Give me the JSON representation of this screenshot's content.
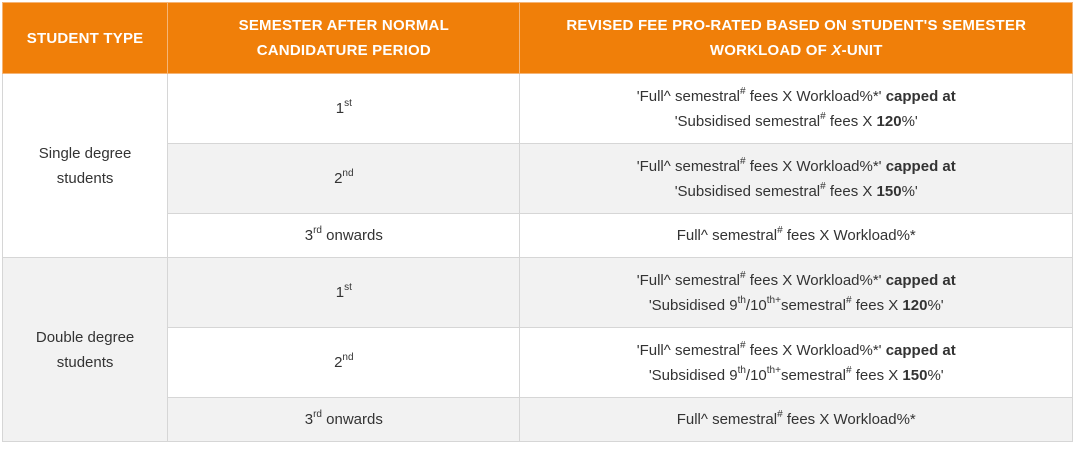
{
  "colors": {
    "header_bg": "#f07f09",
    "header_text": "#ffffff",
    "alt_row": "#f2f2f2"
  },
  "header": {
    "col1": "STUDENT TYPE",
    "col2_line1": "SEMESTER AFTER NORMAL",
    "col2_line2": "CANDIDATURE PERIOD",
    "col3_line1": "REVISED FEE PRO-RATED BASED ON STUDENT'S SEMESTER",
    "col3_line2_pre": "WORKLOAD OF ",
    "col3_line2_italic": "X",
    "col3_line2_post": "-UNIT"
  },
  "groups": [
    {
      "type_line1": "Single degree",
      "type_line2": "students",
      "rows": [
        {
          "sem_num": "1",
          "sem_sup": "st",
          "l1_a": "'Full^ semestral",
          "l1_sup": "#",
          "l1_b": " fees X Workload%*'",
          "l1_bold": " capped at",
          "l2_a": "'Subsidised semestral",
          "l2_sup": "#",
          "l2_b": " fees X ",
          "l2_bold": "120",
          "l2_c": "%'"
        },
        {
          "sem_num": "2",
          "sem_sup": "nd",
          "l1_a": "'Full^ semestral",
          "l1_sup": "#",
          "l1_b": " fees X Workload%*'",
          "l1_bold": " capped at",
          "l2_a": "'Subsidised semestral",
          "l2_sup": "#",
          "l2_b": " fees X ",
          "l2_bold": "150",
          "l2_c": "%'"
        },
        {
          "sem_num": "3",
          "sem_sup": "rd",
          "sem_post": " onwards",
          "s_a": "Full^ semestral",
          "s_sup": "#",
          "s_b": " fees X Workload%*"
        }
      ]
    },
    {
      "type_line1": "Double degree",
      "type_line2": "students",
      "rows": [
        {
          "sem_num": "1",
          "sem_sup": "st",
          "l1_a": "'Full^ semestral",
          "l1_sup": "#",
          "l1_b": " fees X Workload%*'",
          "l1_bold": " capped at",
          "l2_a": "'Subsidised 9",
          "l2_sup1": "th",
          "l2_mid": "/10",
          "l2_sup2": "th+",
          "l2_a2": "semestral",
          "l2_sup": "#",
          "l2_b": " fees X ",
          "l2_bold": "120",
          "l2_c": "%'"
        },
        {
          "sem_num": "2",
          "sem_sup": "nd",
          "l1_a": "'Full^ semestral",
          "l1_sup": "#",
          "l1_b": " fees X Workload%*'",
          "l1_bold": " capped at",
          "l2_a": "'Subsidised 9",
          "l2_sup1": "th",
          "l2_mid": "/10",
          "l2_sup2": "th+",
          "l2_a2": "semestral",
          "l2_sup": "#",
          "l2_b": " fees X ",
          "l2_bold": "150",
          "l2_c": "%'"
        },
        {
          "sem_num": "3",
          "sem_sup": "rd",
          "sem_post": " onwards",
          "s_a": "Full^ semestral",
          "s_sup": "#",
          "s_b": " fees X Workload%*"
        }
      ]
    }
  ]
}
